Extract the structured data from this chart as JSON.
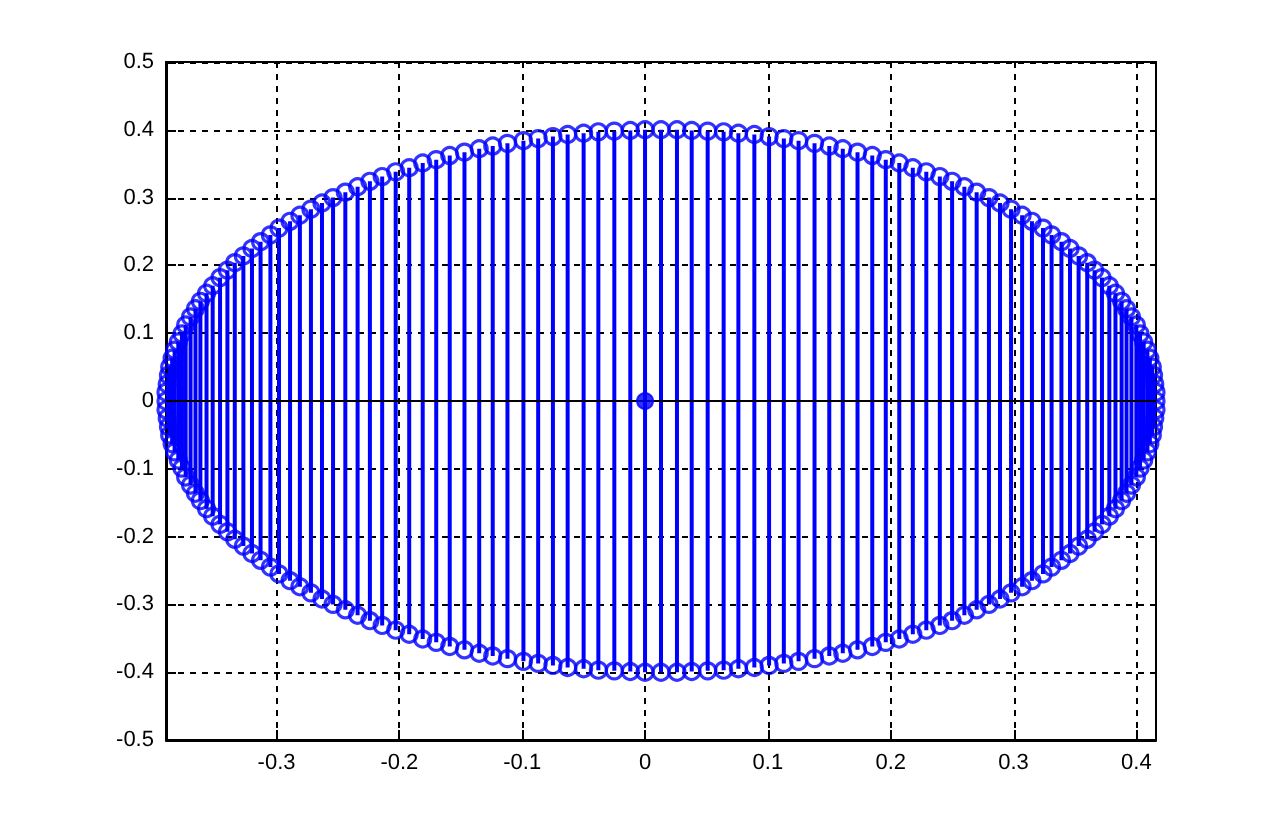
{
  "chart_data": {
    "type": "lollipop",
    "marker": "circle",
    "grid": true,
    "xlim": [
      -0.39,
      0.416
    ],
    "ylim": [
      -0.5,
      0.5
    ],
    "xticks": [
      -0.3,
      -0.2,
      -0.1,
      0,
      0.1,
      0.2,
      0.3,
      0.4
    ],
    "yticks": [
      -0.5,
      -0.4,
      -0.3,
      -0.2,
      -0.1,
      0,
      0.1,
      0.2,
      0.3,
      0.4,
      0.5
    ],
    "ref_lines": [
      {
        "axis": "y",
        "value": 0,
        "color": "#000000",
        "line_style": "solid"
      }
    ],
    "series": [
      {
        "color": "#0000ff",
        "x": [
          -0.39,
          -0.39,
          -0.389,
          -0.388,
          -0.387,
          -0.385,
          -0.383,
          -0.38,
          -0.377,
          -0.374,
          -0.37,
          -0.366,
          -0.362,
          -0.357,
          -0.352,
          -0.346,
          -0.34,
          -0.334,
          -0.327,
          -0.32,
          -0.313,
          -0.305,
          -0.298,
          -0.289,
          -0.281,
          -0.272,
          -0.263,
          -0.254,
          -0.244,
          -0.234,
          -0.224,
          -0.214,
          -0.203,
          -0.192,
          -0.181,
          -0.17,
          -0.159,
          -0.147,
          -0.135,
          -0.124,
          -0.112,
          -0.099,
          -0.087,
          -0.075,
          -0.063,
          -0.05,
          -0.038,
          -0.025,
          -0.012,
          0.0,
          0.013,
          0.026,
          0.038,
          0.051,
          0.064,
          0.076,
          0.089,
          0.101,
          0.113,
          0.125,
          0.138,
          0.15,
          0.161,
          0.173,
          0.185,
          0.196,
          0.207,
          0.218,
          0.229,
          0.24,
          0.25,
          0.26,
          0.27,
          0.28,
          0.289,
          0.298,
          0.307,
          0.315,
          0.324,
          0.331,
          0.339,
          0.346,
          0.353,
          0.36,
          0.366,
          0.372,
          0.378,
          0.383,
          0.388,
          0.392,
          0.396,
          0.4,
          0.403,
          0.406,
          0.409,
          0.411,
          0.413,
          0.414,
          0.415,
          0.416,
          0.416
        ],
        "values": [
          0,
          0.013,
          0.025,
          0.038,
          0.05,
          0.063,
          0.075,
          0.087,
          0.099,
          0.112,
          0.124,
          0.136,
          0.147,
          0.159,
          0.17,
          0.182,
          0.193,
          0.204,
          0.214,
          0.225,
          0.235,
          0.245,
          0.255,
          0.265,
          0.274,
          0.283,
          0.292,
          0.3,
          0.308,
          0.316,
          0.324,
          0.331,
          0.338,
          0.344,
          0.351,
          0.356,
          0.362,
          0.367,
          0.372,
          0.376,
          0.38,
          0.384,
          0.387,
          0.39,
          0.393,
          0.395,
          0.397,
          0.398,
          0.399,
          0.4,
          0.4,
          0.4,
          0.399,
          0.398,
          0.397,
          0.395,
          0.393,
          0.39,
          0.387,
          0.384,
          0.38,
          0.376,
          0.372,
          0.367,
          0.362,
          0.356,
          0.351,
          0.344,
          0.338,
          0.331,
          0.324,
          0.316,
          0.308,
          0.3,
          0.292,
          0.283,
          0.274,
          0.265,
          0.255,
          0.245,
          0.235,
          0.225,
          0.214,
          0.204,
          0.193,
          0.182,
          0.17,
          0.159,
          0.147,
          0.136,
          0.124,
          0.112,
          0.099,
          0.087,
          0.075,
          0.063,
          0.05,
          0.038,
          0.025,
          0.013,
          0
        ]
      },
      {
        "color": "#0000ff",
        "x": [
          -0.39,
          -0.389,
          -0.388,
          -0.387,
          -0.385,
          -0.383,
          -0.38,
          -0.377,
          -0.374,
          -0.37,
          -0.366,
          -0.362,
          -0.357,
          -0.352,
          -0.346,
          -0.34,
          -0.334,
          -0.327,
          -0.32,
          -0.313,
          -0.305,
          -0.298,
          -0.289,
          -0.281,
          -0.272,
          -0.263,
          -0.254,
          -0.244,
          -0.234,
          -0.224,
          -0.214,
          -0.203,
          -0.192,
          -0.181,
          -0.17,
          -0.159,
          -0.147,
          -0.135,
          -0.124,
          -0.112,
          -0.099,
          -0.087,
          -0.075,
          -0.063,
          -0.05,
          -0.038,
          -0.025,
          -0.012,
          0.0,
          0.013,
          0.026,
          0.038,
          0.051,
          0.064,
          0.076,
          0.089,
          0.101,
          0.113,
          0.125,
          0.138,
          0.15,
          0.161,
          0.173,
          0.185,
          0.196,
          0.207,
          0.218,
          0.229,
          0.24,
          0.25,
          0.26,
          0.27,
          0.28,
          0.289,
          0.298,
          0.307,
          0.315,
          0.324,
          0.331,
          0.339,
          0.346,
          0.353,
          0.36,
          0.366,
          0.372,
          0.378,
          0.383,
          0.388,
          0.392,
          0.396,
          0.4,
          0.403,
          0.406,
          0.409,
          0.411,
          0.413,
          0.414,
          0.415,
          0.416
        ],
        "values": [
          -0.013,
          -0.025,
          -0.038,
          -0.05,
          -0.063,
          -0.075,
          -0.087,
          -0.099,
          -0.112,
          -0.124,
          -0.136,
          -0.147,
          -0.159,
          -0.17,
          -0.182,
          -0.193,
          -0.204,
          -0.214,
          -0.225,
          -0.235,
          -0.245,
          -0.255,
          -0.265,
          -0.274,
          -0.283,
          -0.292,
          -0.3,
          -0.308,
          -0.316,
          -0.324,
          -0.331,
          -0.338,
          -0.344,
          -0.351,
          -0.356,
          -0.362,
          -0.367,
          -0.372,
          -0.376,
          -0.38,
          -0.384,
          -0.387,
          -0.39,
          -0.393,
          -0.395,
          -0.397,
          -0.398,
          -0.399,
          -0.4,
          -0.4,
          -0.4,
          -0.399,
          -0.398,
          -0.397,
          -0.395,
          -0.393,
          -0.39,
          -0.387,
          -0.384,
          -0.38,
          -0.376,
          -0.372,
          -0.367,
          -0.362,
          -0.356,
          -0.351,
          -0.344,
          -0.338,
          -0.331,
          -0.324,
          -0.316,
          -0.308,
          -0.3,
          -0.292,
          -0.283,
          -0.274,
          -0.265,
          -0.255,
          -0.245,
          -0.235,
          -0.225,
          -0.214,
          -0.204,
          -0.193,
          -0.182,
          -0.17,
          -0.159,
          -0.147,
          -0.136,
          -0.124,
          -0.112,
          -0.099,
          -0.087,
          -0.075,
          -0.063,
          -0.05,
          -0.038,
          -0.025,
          -0.013
        ]
      },
      {
        "type": "scatter",
        "color": "#0000ff",
        "x": [
          0
        ],
        "values": [
          0
        ]
      }
    ]
  }
}
